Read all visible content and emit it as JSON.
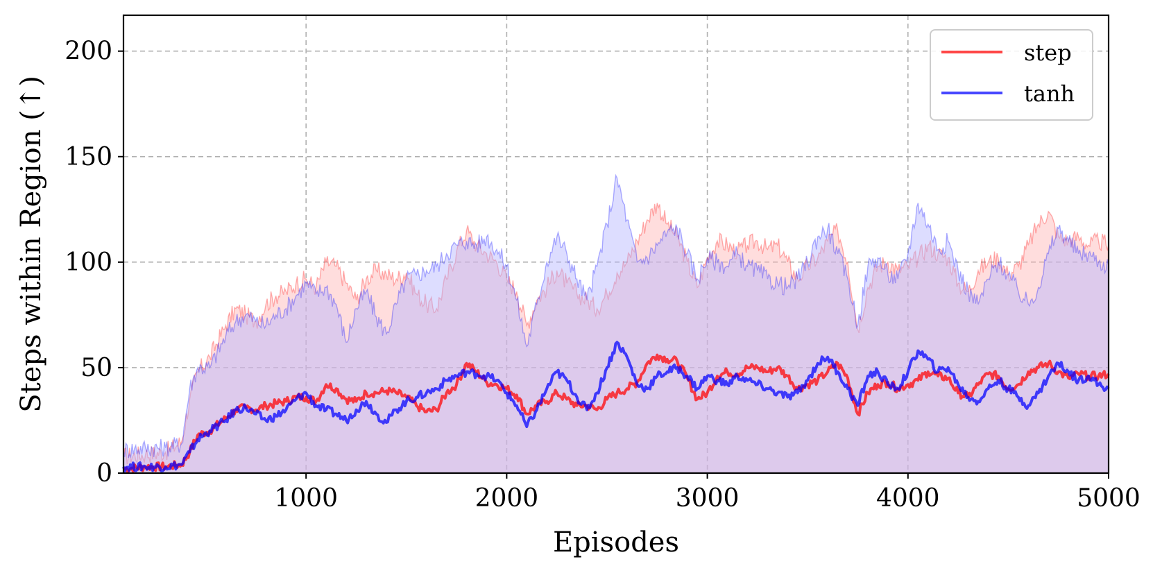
{
  "chart_data": {
    "type": "line",
    "title": "",
    "xlabel": "Episodes",
    "ylabel": "Steps within Region (↑)",
    "xlim": [
      90,
      5000
    ],
    "ylim": [
      0,
      217
    ],
    "xticks": [
      1000,
      2000,
      3000,
      4000,
      5000
    ],
    "xtick_labels": [
      "1000",
      "2000",
      "3000",
      "4000",
      "5000"
    ],
    "yticks": [
      0,
      50,
      100,
      150,
      200
    ],
    "ytick_labels": [
      "0",
      "50",
      "100",
      "150",
      "200"
    ],
    "grid": true,
    "legend_position": "top-right",
    "series": [
      {
        "name": "step",
        "color": "#ff0000",
        "x": [
          90,
          200,
          300,
          380,
          420,
          460,
          520,
          600,
          650,
          700,
          750,
          800,
          850,
          900,
          950,
          1000,
          1050,
          1100,
          1150,
          1200,
          1250,
          1300,
          1350,
          1400,
          1450,
          1500,
          1550,
          1600,
          1650,
          1700,
          1750,
          1800,
          1850,
          1900,
          1950,
          2000,
          2050,
          2100,
          2150,
          2200,
          2250,
          2300,
          2350,
          2400,
          2450,
          2500,
          2550,
          2600,
          2650,
          2700,
          2750,
          2800,
          2850,
          2900,
          2950,
          3000,
          3050,
          3100,
          3150,
          3200,
          3250,
          3300,
          3350,
          3400,
          3450,
          3500,
          3550,
          3600,
          3650,
          3700,
          3750,
          3800,
          3850,
          3900,
          3950,
          4000,
          4050,
          4100,
          4150,
          4200,
          4250,
          4300,
          4350,
          4400,
          4450,
          4500,
          4550,
          4600,
          4650,
          4700,
          4750,
          4800,
          4850,
          4900,
          4950,
          5000
        ],
        "mean": [
          2,
          3,
          3,
          4,
          10,
          18,
          20,
          26,
          30,
          31,
          30,
          32,
          33,
          34,
          36,
          36,
          34,
          42,
          40,
          35,
          34,
          38,
          38,
          39,
          38,
          36,
          32,
          29,
          30,
          38,
          42,
          52,
          48,
          43,
          42,
          40,
          37,
          28,
          32,
          34,
          38,
          35,
          32,
          32,
          30,
          35,
          38,
          40,
          43,
          52,
          56,
          54,
          53,
          45,
          35,
          38,
          46,
          48,
          47,
          50,
          50,
          48,
          50,
          46,
          40,
          42,
          44,
          48,
          52,
          45,
          28,
          38,
          42,
          43,
          40,
          42,
          44,
          48,
          46,
          45,
          38,
          36,
          42,
          47,
          46,
          40,
          42,
          48,
          50,
          52,
          48,
          45,
          47,
          46,
          46,
          47
        ],
        "upper": [
          8,
          9,
          10,
          15,
          35,
          48,
          55,
          70,
          78,
          75,
          72,
          80,
          84,
          86,
          90,
          92,
          88,
          100,
          98,
          90,
          82,
          92,
          96,
          94,
          92,
          95,
          85,
          80,
          78,
          92,
          105,
          115,
          108,
          104,
          100,
          92,
          86,
          70,
          82,
          88,
          96,
          90,
          85,
          82,
          78,
          85,
          95,
          100,
          110,
          120,
          128,
          118,
          112,
          100,
          88,
          102,
          110,
          108,
          105,
          108,
          110,
          106,
          108,
          100,
          92,
          98,
          102,
          110,
          115,
          100,
          68,
          88,
          98,
          100,
          96,
          98,
          102,
          108,
          104,
          102,
          90,
          86,
          96,
          100,
          102,
          94,
          98,
          108,
          118,
          124,
          112,
          110,
          112,
          108,
          110,
          108
        ]
      },
      {
        "name": "tanh",
        "color": "#0000ff",
        "x": [
          90,
          200,
          300,
          380,
          420,
          460,
          520,
          600,
          650,
          700,
          750,
          800,
          850,
          900,
          950,
          1000,
          1050,
          1100,
          1150,
          1200,
          1250,
          1300,
          1350,
          1400,
          1450,
          1500,
          1550,
          1600,
          1650,
          1700,
          1750,
          1800,
          1850,
          1900,
          1950,
          2000,
          2050,
          2100,
          2150,
          2200,
          2250,
          2300,
          2350,
          2400,
          2450,
          2500,
          2550,
          2600,
          2650,
          2700,
          2750,
          2800,
          2850,
          2900,
          2950,
          3000,
          3050,
          3100,
          3150,
          3200,
          3250,
          3300,
          3350,
          3400,
          3450,
          3500,
          3550,
          3600,
          3650,
          3700,
          3750,
          3800,
          3850,
          3900,
          3950,
          4000,
          4050,
          4100,
          4150,
          4200,
          4250,
          4300,
          4350,
          4400,
          4450,
          4500,
          4550,
          4600,
          4650,
          4700,
          4750,
          4800,
          4850,
          4900,
          4950,
          5000
        ],
        "mean": [
          3,
          3,
          3,
          4,
          10,
          16,
          20,
          25,
          30,
          31,
          28,
          25,
          27,
          30,
          35,
          38,
          32,
          30,
          28,
          25,
          30,
          34,
          28,
          24,
          30,
          34,
          36,
          38,
          40,
          44,
          46,
          48,
          47,
          46,
          44,
          38,
          32,
          22,
          30,
          40,
          48,
          44,
          36,
          30,
          38,
          50,
          62,
          55,
          42,
          40,
          46,
          48,
          50,
          46,
          40,
          46,
          44,
          42,
          46,
          44,
          42,
          40,
          38,
          36,
          38,
          44,
          52,
          55,
          48,
          40,
          32,
          46,
          48,
          42,
          40,
          48,
          58,
          54,
          48,
          50,
          42,
          36,
          34,
          40,
          44,
          40,
          36,
          32,
          38,
          46,
          52,
          48,
          44,
          46,
          42,
          40
        ],
        "upper": [
          11,
          12,
          12,
          14,
          40,
          50,
          50,
          65,
          72,
          75,
          72,
          70,
          75,
          78,
          84,
          90,
          85,
          88,
          80,
          62,
          78,
          86,
          74,
          66,
          80,
          92,
          94,
          96,
          98,
          104,
          108,
          110,
          108,
          112,
          106,
          98,
          82,
          60,
          80,
          100,
          112,
          104,
          92,
          82,
          98,
          118,
          140,
          120,
          100,
          102,
          108,
          114,
          116,
          104,
          92,
          102,
          100,
          98,
          104,
          98,
          96,
          92,
          90,
          88,
          92,
          100,
          112,
          116,
          104,
          92,
          70,
          98,
          102,
          94,
          92,
          104,
          128,
          118,
          106,
          110,
          96,
          86,
          80,
          92,
          100,
          94,
          86,
          80,
          88,
          104,
          116,
          110,
          104,
          104,
          100,
          98
        ]
      }
    ]
  },
  "legend": {
    "items": [
      {
        "label": "step",
        "color": "#ff0000"
      },
      {
        "label": "tanh",
        "color": "#0000ff"
      }
    ]
  },
  "colors": {
    "step_fill": "#ffb3b3",
    "tanh_fill": "#b3b3ff",
    "grid": "#b0b0b0"
  }
}
